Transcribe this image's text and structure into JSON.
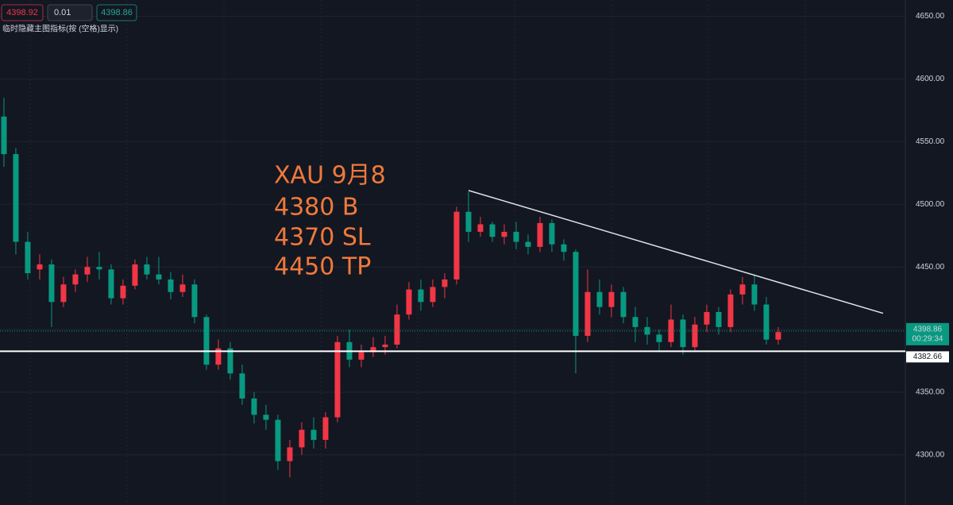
{
  "chart_data": {
    "type": "candlestick",
    "header": {
      "bid": "4398.92",
      "lot": "0.01",
      "ask": "4398.86",
      "hint": "临时隐藏主图指标(按 (空格)显示)"
    },
    "annotations": [
      "XAU 9月8",
      "4380 B",
      "4370 SL",
      "4450 TP"
    ],
    "up_color": "#f23645",
    "down_color": "#089981",
    "xlim": [
      -0.33,
      75.67
    ],
    "ylim": [
      4260,
      4663
    ],
    "yticks": [
      {
        "value": 4300,
        "label": "4300.00"
      },
      {
        "value": 4350,
        "label": "4350.00"
      },
      {
        "value": 4400,
        "label": "4400.00"
      },
      {
        "value": 4450,
        "label": "4450.00"
      },
      {
        "value": 4500,
        "label": "4500.00"
      },
      {
        "value": 4550,
        "label": "4550.00"
      },
      {
        "value": 4600,
        "label": "4600.00"
      },
      {
        "value": 4650,
        "label": "4650.00"
      }
    ],
    "open": [
      4570,
      4540,
      4470,
      4448,
      4452,
      4422,
      4436,
      4444,
      4450,
      4448,
      4425,
      4435,
      4452,
      4444,
      4440,
      4430,
      4436,
      4410,
      4372,
      4385,
      4365,
      4345,
      4332,
      4328,
      4295,
      4306,
      4320,
      4312,
      4330,
      4390,
      4376,
      4382,
      4386,
      4388,
      4412,
      4432,
      4422,
      4434,
      4440,
      4494,
      4478,
      4484,
      4474,
      4478,
      4470,
      4466,
      4485,
      4468,
      4462,
      4395,
      4430,
      4418,
      4430,
      4410,
      4402,
      4396,
      4390,
      4408,
      4386,
      4404,
      4414,
      4402,
      4428,
      4436,
      4420,
      4392
    ],
    "high": [
      4585,
      4545,
      4478,
      4460,
      4456,
      4442,
      4448,
      4458,
      4462,
      4452,
      4440,
      4456,
      4458,
      4458,
      4446,
      4444,
      4440,
      4412,
      4392,
      4390,
      4372,
      4350,
      4340,
      4332,
      4312,
      4326,
      4330,
      4334,
      4395,
      4400,
      4388,
      4394,
      4395,
      4420,
      4438,
      4440,
      4440,
      4445,
      4498,
      4510,
      4490,
      4486,
      4484,
      4486,
      4476,
      4490,
      4488,
      4472,
      4464,
      4448,
      4440,
      4436,
      4434,
      4418,
      4410,
      4400,
      4420,
      4412,
      4410,
      4420,
      4418,
      4432,
      4442,
      4444,
      4426,
      4402
    ],
    "low": [
      4530,
      4460,
      4440,
      4440,
      4402,
      4418,
      4430,
      4438,
      4440,
      4420,
      4420,
      4432,
      4440,
      4436,
      4424,
      4426,
      4405,
      4368,
      4368,
      4360,
      4340,
      4325,
      4320,
      4288,
      4282,
      4300,
      4305,
      4305,
      4326,
      4370,
      4370,
      4378,
      4380,
      4385,
      4408,
      4415,
      4418,
      4425,
      4436,
      4470,
      4474,
      4470,
      4468,
      4464,
      4460,
      4462,
      4462,
      4455,
      4365,
      4390,
      4412,
      4410,
      4405,
      4390,
      4388,
      4382,
      4386,
      4380,
      4382,
      4398,
      4396,
      4398,
      4420,
      4415,
      4388,
      4388
    ],
    "close": [
      4540,
      4470,
      4445,
      4452,
      4422,
      4436,
      4444,
      4450,
      4448,
      4425,
      4435,
      4452,
      4444,
      4440,
      4430,
      4436,
      4410,
      4372,
      4385,
      4365,
      4345,
      4332,
      4328,
      4295,
      4306,
      4320,
      4312,
      4330,
      4390,
      4376,
      4382,
      4386,
      4388,
      4412,
      4432,
      4422,
      4434,
      4440,
      4494,
      4478,
      4484,
      4474,
      4478,
      4470,
      4466,
      4485,
      4468,
      4462,
      4395,
      4430,
      4418,
      4430,
      4410,
      4402,
      4396,
      4390,
      4408,
      4386,
      4404,
      4414,
      4402,
      4428,
      4436,
      4420,
      4392,
      4398
    ],
    "trendline": {
      "x": [
        39,
        73.8
      ],
      "y": [
        4511,
        4413
      ]
    },
    "last_price": {
      "value": 4398.86,
      "label": "4398.86",
      "countdown": "00:29:34"
    },
    "hline": {
      "value": 4382.66,
      "label": "4382.66"
    }
  }
}
